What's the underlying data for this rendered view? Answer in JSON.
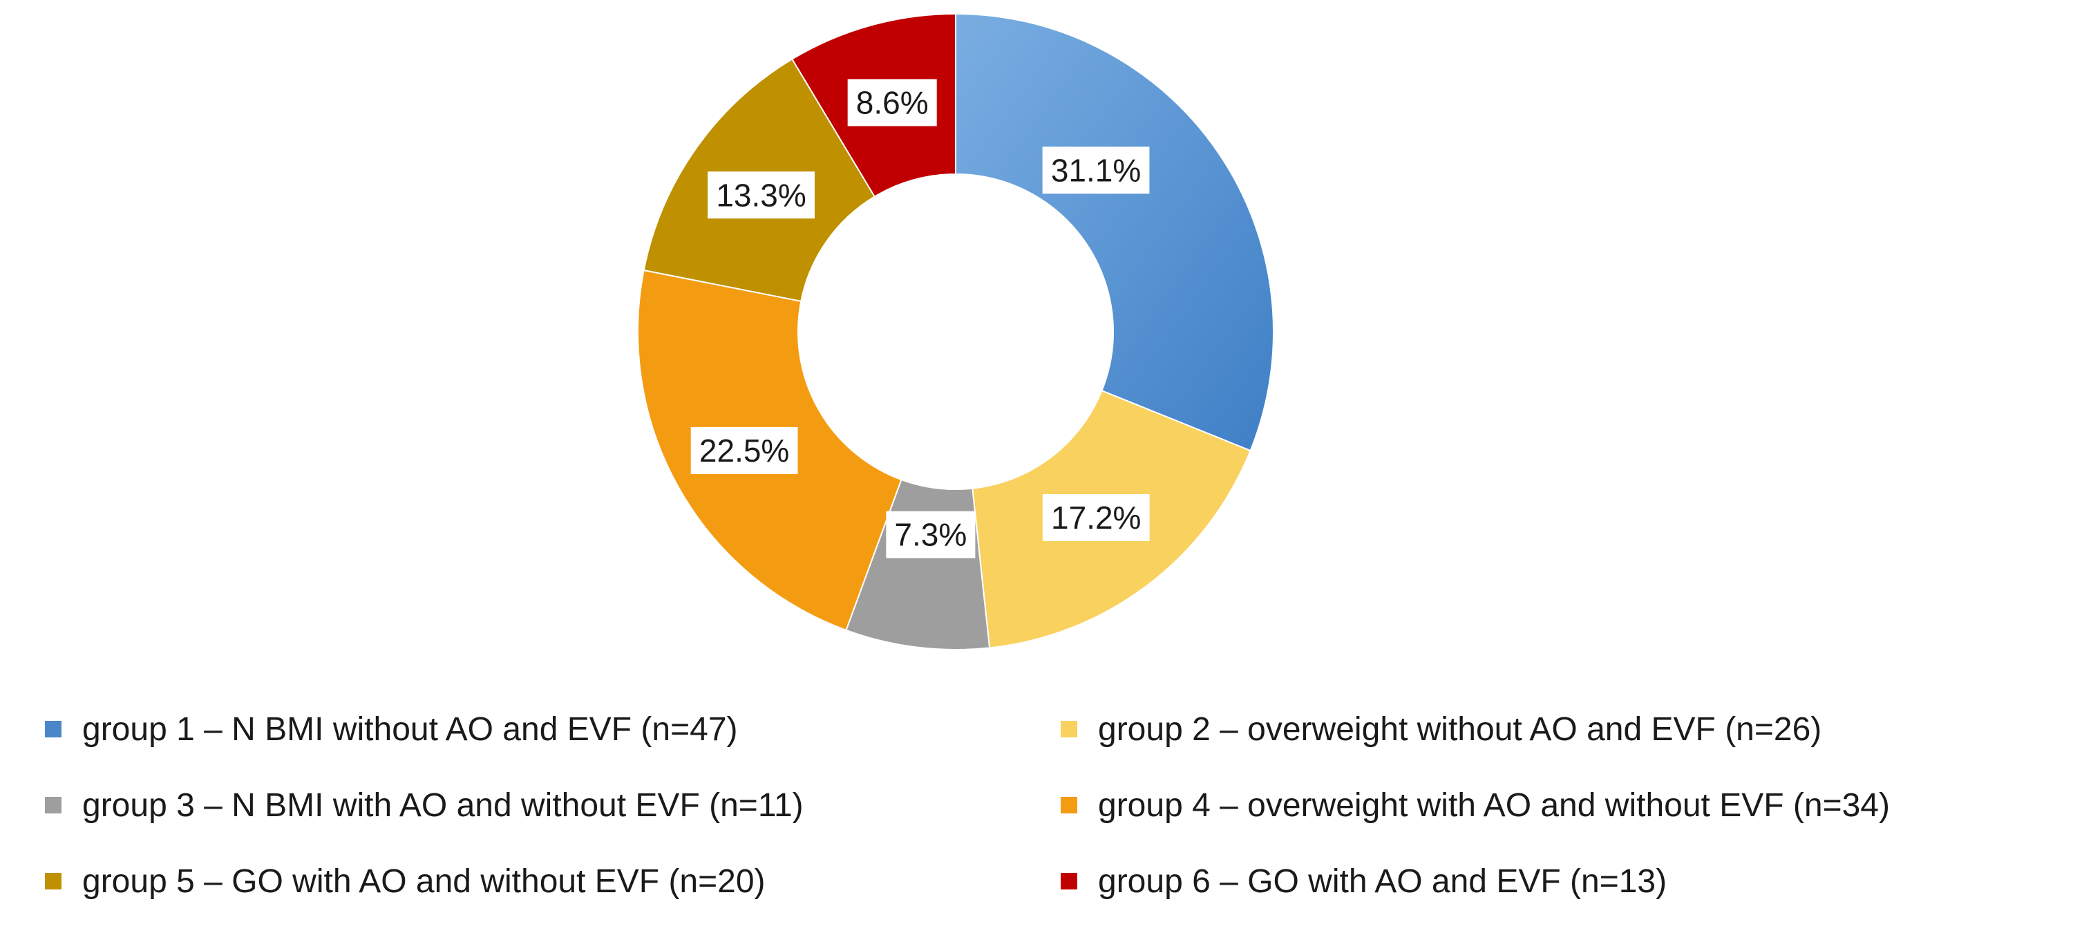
{
  "chart_data": {
    "type": "pie",
    "subtype": "donut",
    "title": "",
    "categories": [
      "group 1 – N BMI without AO and EVF (n=47)",
      "group 2 – overweight without AO and EVF (n=26)",
      "group 3 – N BMI with AO and without EVF (n=11)",
      "group 4 – overweight with AO and without EVF (n=34)",
      "group 5 – GO with AO and without EVF (n=20)",
      "group 6 – GO with AO and EVF (n=13)"
    ],
    "values": [
      31.1,
      17.2,
      7.3,
      22.5,
      13.3,
      8.6
    ],
    "counts": [
      47,
      26,
      11,
      34,
      20,
      13
    ],
    "data_labels": [
      "31.1%",
      "17.2%",
      "7.3%",
      "22.5%",
      "13.3%",
      "8.6%"
    ],
    "colors": [
      "#4a86c8",
      "#f9d15f",
      "#9e9e9e",
      "#f39c12",
      "#bf9000",
      "#c00000"
    ],
    "legend_position": "bottom"
  }
}
